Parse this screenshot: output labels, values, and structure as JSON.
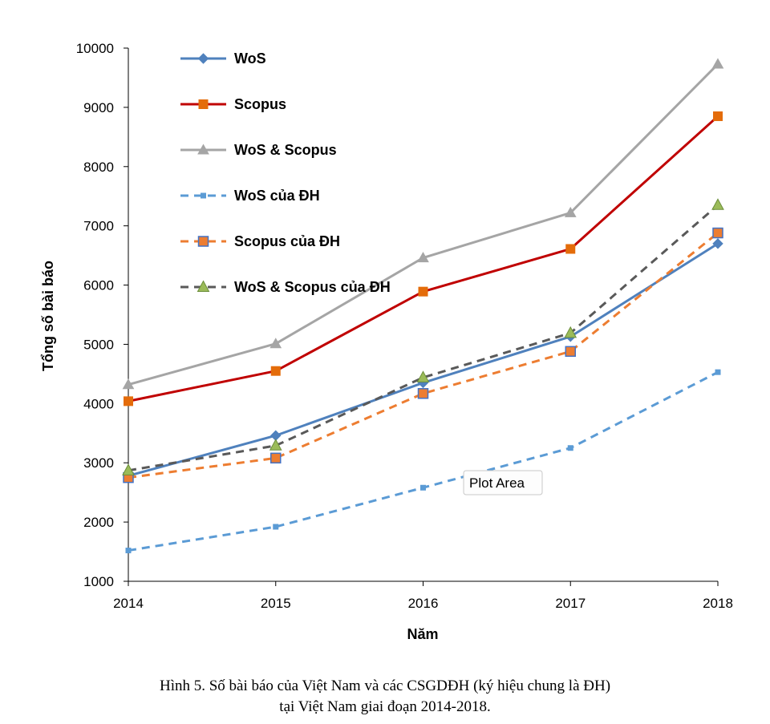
{
  "chart_data": {
    "type": "line",
    "title": "",
    "xlabel": "Năm",
    "ylabel": "Tổng số bài báo",
    "x": [
      2014,
      2015,
      2016,
      2017,
      2018
    ],
    "xlim": [
      2014,
      2018
    ],
    "ylim": [
      1000,
      10000
    ],
    "yticks": [
      1000,
      2000,
      3000,
      4000,
      5000,
      6000,
      7000,
      8000,
      9000,
      10000
    ],
    "grid": false,
    "legend_position": "top-left inside",
    "series": [
      {
        "name": "WoS",
        "values": [
          2780,
          3460,
          4350,
          5130,
          6700
        ],
        "color": "#4f81bd",
        "dash": "solid",
        "marker": "diamond",
        "marker_fill": "#4f81bd"
      },
      {
        "name": "Scopus",
        "values": [
          4040,
          4550,
          5890,
          6610,
          8850
        ],
        "color": "#c00000",
        "dash": "solid",
        "marker": "square",
        "marker_fill": "#e46c0a"
      },
      {
        "name": "WoS & Scopus",
        "values": [
          4320,
          5010,
          6460,
          7220,
          9730
        ],
        "color": "#a5a5a5",
        "dash": "solid",
        "marker": "triangle",
        "marker_fill": "#a5a5a5"
      },
      {
        "name": "WoS của ĐH",
        "values": [
          1520,
          1920,
          2580,
          3250,
          4530
        ],
        "color": "#5b9bd5",
        "dash": "dashed",
        "marker": "small-square",
        "marker_fill": "#5b9bd5"
      },
      {
        "name": "Scopus của ĐH",
        "values": [
          2750,
          3080,
          4170,
          4880,
          6880
        ],
        "color": "#ed7d31",
        "dash": "dashed",
        "marker": "square-outlined",
        "marker_fill": "#ed7d31"
      },
      {
        "name": "WoS & Scopus của ĐH",
        "values": [
          2870,
          3290,
          4440,
          5190,
          7350
        ],
        "color": "#595959",
        "dash": "dashed",
        "marker": "triangle-green",
        "marker_fill": "#9bbb59"
      }
    ]
  },
  "tooltip": {
    "label": "Plot Area"
  },
  "caption": {
    "line1": "Hình 5. Số bài báo của Việt Nam và các CSGDĐH (ký hiệu chung là ĐH)",
    "line2": "tại Việt Nam giai đoạn 2014-2018."
  }
}
